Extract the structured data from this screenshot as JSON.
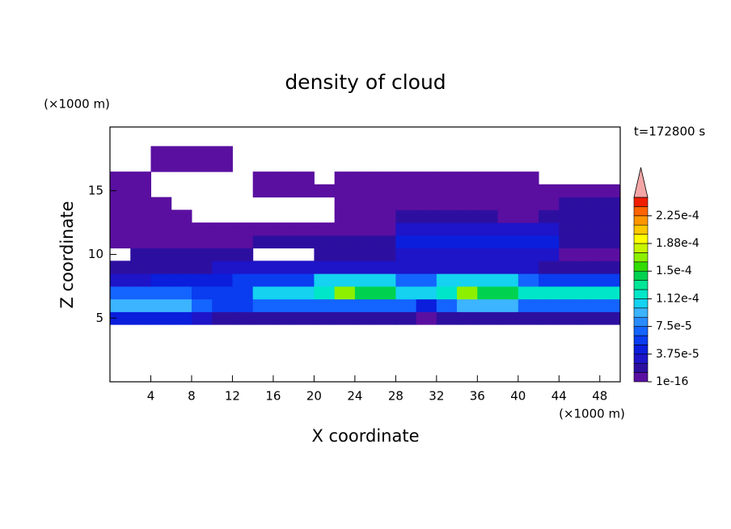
{
  "chart_data": {
    "type": "contour",
    "title": "density of cloud",
    "x_label": "X coordinate",
    "y_label": "Z coordinate",
    "x_unit": "(×1000 m)",
    "y_unit": "(×1000 m)",
    "time_label": "t=172800 s",
    "xlim": [
      0,
      50
    ],
    "ylim": [
      0,
      20
    ],
    "xticks": [
      4,
      8,
      12,
      16,
      20,
      24,
      28,
      32,
      36,
      40,
      44,
      48
    ],
    "yticks": [
      5,
      10,
      15
    ],
    "x": [
      1,
      3,
      5,
      7,
      9,
      11,
      13,
      15,
      17,
      19,
      21,
      23,
      25,
      27,
      29,
      31,
      33,
      35,
      37,
      39,
      41,
      43,
      45,
      47,
      49
    ],
    "y": [
      5,
      6,
      7,
      8,
      9,
      10,
      11,
      12,
      13,
      14,
      15,
      16,
      17,
      18
    ],
    "z": [
      [
        4.5e-05,
        4.5e-05,
        4.5e-05,
        4.5e-05,
        3e-05,
        2e-05,
        2e-05,
        2e-05,
        2e-05,
        2e-05,
        2e-05,
        2e-05,
        2e-05,
        2e-05,
        2e-05,
        5e-06,
        2e-05,
        2e-05,
        2e-05,
        2e-05,
        2e-05,
        2e-05,
        2e-05,
        2e-05,
        2e-05
      ],
      [
        9.5e-05,
        9.5e-05,
        9.5e-05,
        9.5e-05,
        7e-05,
        6e-05,
        6e-05,
        7e-05,
        7e-05,
        7e-05,
        7e-05,
        7e-05,
        7e-05,
        7e-05,
        7e-05,
        4.5e-05,
        7e-05,
        9.5e-05,
        9.5e-05,
        9.5e-05,
        7e-05,
        7e-05,
        7e-05,
        7e-05,
        7e-05
      ],
      [
        7e-05,
        7e-05,
        7e-05,
        7e-05,
        6e-05,
        6e-05,
        6e-05,
        0.00011,
        0.00011,
        0.00011,
        0.00012,
        0.00017,
        0.000145,
        0.000145,
        0.00011,
        0.00011,
        0.00012,
        0.00017,
        0.000145,
        0.000145,
        0.00012,
        0.00012,
        0.00012,
        0.00012,
        0.00012
      ],
      [
        3e-05,
        3e-05,
        4.5e-05,
        4.5e-05,
        4.5e-05,
        4.5e-05,
        6e-05,
        6e-05,
        6e-05,
        6e-05,
        0.00011,
        0.00011,
        0.00011,
        0.00011,
        7e-05,
        7e-05,
        0.00011,
        0.00011,
        0.00011,
        0.00011,
        7e-05,
        6e-05,
        6e-05,
        6e-05,
        6e-05
      ],
      [
        2e-05,
        2e-05,
        2e-05,
        2e-05,
        2e-05,
        3e-05,
        3e-05,
        3e-05,
        3e-05,
        3e-05,
        3e-05,
        3e-05,
        3e-05,
        3e-05,
        3e-05,
        3e-05,
        3e-05,
        3e-05,
        3e-05,
        3e-05,
        3e-05,
        2e-05,
        2e-05,
        2e-05,
        2e-05
      ],
      [
        0,
        2e-05,
        2e-05,
        2e-05,
        2e-05,
        2e-05,
        2e-05,
        0,
        0,
        0,
        2e-05,
        2e-05,
        2e-05,
        2e-05,
        3e-05,
        3e-05,
        3e-05,
        3e-05,
        3e-05,
        3e-05,
        3e-05,
        3e-05,
        5e-06,
        5e-06,
        5e-06
      ],
      [
        5e-06,
        5e-06,
        5e-06,
        5e-06,
        5e-06,
        5e-06,
        5e-06,
        2e-05,
        2e-05,
        2e-05,
        2e-05,
        2e-05,
        2e-05,
        2e-05,
        4.5e-05,
        4.5e-05,
        4.5e-05,
        4.5e-05,
        4.5e-05,
        4.5e-05,
        4.5e-05,
        4.5e-05,
        2e-05,
        2e-05,
        2e-05
      ],
      [
        5e-06,
        5e-06,
        5e-06,
        5e-06,
        5e-06,
        5e-06,
        5e-06,
        5e-06,
        5e-06,
        5e-06,
        5e-06,
        5e-06,
        5e-06,
        5e-06,
        3e-05,
        3e-05,
        3e-05,
        3e-05,
        3e-05,
        3e-05,
        3e-05,
        3e-05,
        2e-05,
        2e-05,
        2e-05
      ],
      [
        5e-06,
        5e-06,
        5e-06,
        5e-06,
        0,
        0,
        0,
        0,
        0,
        0,
        0,
        5e-06,
        5e-06,
        5e-06,
        2e-05,
        2e-05,
        2e-05,
        2e-05,
        2e-05,
        5e-06,
        5e-06,
        2e-05,
        2e-05,
        2e-05,
        2e-05
      ],
      [
        5e-06,
        5e-06,
        5e-06,
        0,
        0,
        0,
        0,
        0,
        0,
        0,
        0,
        5e-06,
        5e-06,
        5e-06,
        5e-06,
        5e-06,
        5e-06,
        5e-06,
        5e-06,
        5e-06,
        5e-06,
        5e-06,
        2e-05,
        2e-05,
        2e-05
      ],
      [
        5e-06,
        5e-06,
        0,
        0,
        0,
        0,
        0,
        5e-06,
        5e-06,
        5e-06,
        5e-06,
        5e-06,
        5e-06,
        5e-06,
        5e-06,
        5e-06,
        5e-06,
        5e-06,
        5e-06,
        5e-06,
        5e-06,
        5e-06,
        5e-06,
        5e-06,
        5e-06
      ],
      [
        5e-06,
        5e-06,
        0,
        0,
        0,
        0,
        0,
        5e-06,
        5e-06,
        5e-06,
        0,
        5e-06,
        5e-06,
        5e-06,
        5e-06,
        5e-06,
        5e-06,
        5e-06,
        5e-06,
        5e-06,
        5e-06,
        0,
        0,
        0,
        0
      ],
      [
        0,
        0,
        5e-06,
        5e-06,
        5e-06,
        5e-06,
        0,
        0,
        0,
        0,
        0,
        0,
        0,
        0,
        0,
        0,
        0,
        0,
        0,
        0,
        0,
        0,
        0,
        0,
        0
      ],
      [
        0,
        0,
        5e-06,
        5e-06,
        5e-06,
        5e-06,
        0,
        0,
        0,
        0,
        0,
        0,
        0,
        0,
        0,
        0,
        0,
        0,
        0,
        0,
        0,
        0,
        0,
        0,
        0
      ]
    ],
    "levels": [
      1e-16,
      1.25e-05,
      2.5e-05,
      3.75e-05,
      5e-05,
      6.25e-05,
      7.5e-05,
      8.75e-05,
      0.0001,
      0.0001125,
      0.000125,
      0.0001375,
      0.00015,
      0.0001625,
      0.000175,
      0.0001875,
      0.0002,
      0.0002125,
      0.000225,
      0.0002375,
      0.00025
    ],
    "colors": [
      "#5a0fa0",
      "#2d0fa0",
      "#1e14c8",
      "#0a1edc",
      "#0a3cf0",
      "#1464ff",
      "#288cff",
      "#3cb4ff",
      "#14d2f0",
      "#00e6c8",
      "#00e696",
      "#00d250",
      "#32dc00",
      "#8cf000",
      "#c8f500",
      "#ffff00",
      "#ffc800",
      "#ff9600",
      "#ff6400",
      "#f01e00"
    ],
    "extend_color": "#f4a6a6",
    "colorbar_ticks": [
      {
        "value": 1e-16,
        "label": "1e-16"
      },
      {
        "value": 3.75e-05,
        "label": "3.75e-5"
      },
      {
        "value": 7.5e-05,
        "label": "7.5e-5"
      },
      {
        "value": 0.0001125,
        "label": "1.12e-4"
      },
      {
        "value": 0.00015,
        "label": "1.5e-4"
      },
      {
        "value": 0.0001875,
        "label": "1.88e-4"
      },
      {
        "value": 0.000225,
        "label": "2.25e-4"
      }
    ]
  }
}
